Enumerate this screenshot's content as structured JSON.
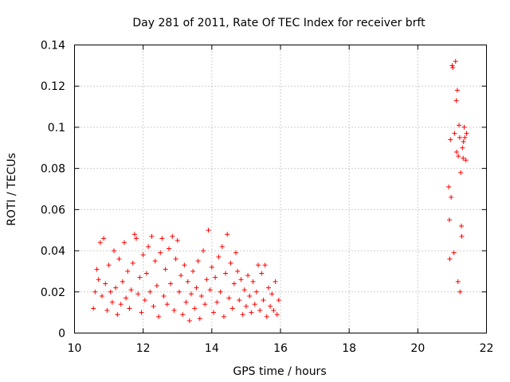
{
  "chart_data": {
    "type": "scatter",
    "title": "Day 281 of 2011, Rate Of TEC Index for receiver brft",
    "xlabel": "GPS time / hours",
    "ylabel": "ROTI / TECUs",
    "xlim": [
      10,
      22
    ],
    "ylim": [
      0,
      0.14
    ],
    "xticks": [
      10,
      12,
      14,
      16,
      18,
      20,
      22
    ],
    "xtick_labels": [
      "10",
      "12",
      "14",
      "16",
      "18",
      "20",
      "22"
    ],
    "yticks": [
      0,
      0.02,
      0.04,
      0.06,
      0.08,
      0.1,
      0.12,
      0.14
    ],
    "ytick_labels": [
      "0",
      "0.02",
      "0.04",
      "0.06",
      "0.08",
      "0.1",
      "0.12",
      "0.14"
    ],
    "grid": true,
    "marker": "+",
    "marker_color": "#ff0000",
    "series": [
      {
        "name": "ROTI",
        "points": [
          [
            10.55,
            0.012
          ],
          [
            10.6,
            0.02
          ],
          [
            10.65,
            0.031
          ],
          [
            10.7,
            0.026
          ],
          [
            10.75,
            0.044
          ],
          [
            10.8,
            0.018
          ],
          [
            10.85,
            0.046
          ],
          [
            10.9,
            0.024
          ],
          [
            10.95,
            0.011
          ],
          [
            11.0,
            0.033
          ],
          [
            11.05,
            0.02
          ],
          [
            11.1,
            0.015
          ],
          [
            11.15,
            0.04
          ],
          [
            11.2,
            0.022
          ],
          [
            11.25,
            0.009
          ],
          [
            11.3,
            0.036
          ],
          [
            11.35,
            0.014
          ],
          [
            11.4,
            0.025
          ],
          [
            11.45,
            0.044
          ],
          [
            11.5,
            0.017
          ],
          [
            11.55,
            0.03
          ],
          [
            11.6,
            0.012
          ],
          [
            11.65,
            0.021
          ],
          [
            11.7,
            0.034
          ],
          [
            11.75,
            0.048
          ],
          [
            11.8,
            0.046
          ],
          [
            11.85,
            0.019
          ],
          [
            11.9,
            0.027
          ],
          [
            11.95,
            0.01
          ],
          [
            12.0,
            0.038
          ],
          [
            12.05,
            0.016
          ],
          [
            12.1,
            0.029
          ],
          [
            12.15,
            0.042
          ],
          [
            12.2,
            0.02
          ],
          [
            12.25,
            0.047
          ],
          [
            12.3,
            0.013
          ],
          [
            12.35,
            0.035
          ],
          [
            12.4,
            0.023
          ],
          [
            12.45,
            0.008
          ],
          [
            12.5,
            0.039
          ],
          [
            12.55,
            0.046
          ],
          [
            12.6,
            0.018
          ],
          [
            12.65,
            0.031
          ],
          [
            12.7,
            0.014
          ],
          [
            12.75,
            0.041
          ],
          [
            12.8,
            0.024
          ],
          [
            12.85,
            0.047
          ],
          [
            12.9,
            0.011
          ],
          [
            12.95,
            0.036
          ],
          [
            13.0,
            0.045
          ],
          [
            13.05,
            0.02
          ],
          [
            13.1,
            0.028
          ],
          [
            13.15,
            0.009
          ],
          [
            13.2,
            0.033
          ],
          [
            13.25,
            0.015
          ],
          [
            13.3,
            0.025
          ],
          [
            13.35,
            0.006
          ],
          [
            13.4,
            0.019
          ],
          [
            13.45,
            0.03
          ],
          [
            13.5,
            0.012
          ],
          [
            13.55,
            0.022
          ],
          [
            13.6,
            0.035
          ],
          [
            13.65,
            0.007
          ],
          [
            13.7,
            0.018
          ],
          [
            13.75,
            0.04
          ],
          [
            13.8,
            0.014
          ],
          [
            13.85,
            0.026
          ],
          [
            13.9,
            0.05
          ],
          [
            13.95,
            0.021
          ],
          [
            14.0,
            0.032
          ],
          [
            14.05,
            0.01
          ],
          [
            14.1,
            0.027
          ],
          [
            14.15,
            0.015
          ],
          [
            14.2,
            0.037
          ],
          [
            14.25,
            0.02
          ],
          [
            14.3,
            0.042
          ],
          [
            14.35,
            0.008
          ],
          [
            14.4,
            0.029
          ],
          [
            14.45,
            0.048
          ],
          [
            14.5,
            0.017
          ],
          [
            14.55,
            0.034
          ],
          [
            14.6,
            0.012
          ],
          [
            14.65,
            0.024
          ],
          [
            14.7,
            0.039
          ],
          [
            14.75,
            0.03
          ],
          [
            14.8,
            0.016
          ],
          [
            14.85,
            0.026
          ],
          [
            14.9,
            0.009
          ],
          [
            14.95,
            0.021
          ],
          [
            15.0,
            0.013
          ],
          [
            15.05,
            0.028
          ],
          [
            15.1,
            0.018
          ],
          [
            15.15,
            0.01
          ],
          [
            15.2,
            0.025
          ],
          [
            15.25,
            0.014
          ],
          [
            15.3,
            0.02
          ],
          [
            15.35,
            0.033
          ],
          [
            15.4,
            0.011
          ],
          [
            15.45,
            0.029
          ],
          [
            15.5,
            0.016
          ],
          [
            15.55,
            0.033
          ],
          [
            15.6,
            0.008
          ],
          [
            15.65,
            0.022
          ],
          [
            15.7,
            0.013
          ],
          [
            15.75,
            0.019
          ],
          [
            15.8,
            0.011
          ],
          [
            15.85,
            0.025
          ],
          [
            15.9,
            0.009
          ],
          [
            15.95,
            0.016
          ],
          [
            20.9,
            0.071
          ],
          [
            20.92,
            0.055
          ],
          [
            20.93,
            0.036
          ],
          [
            20.95,
            0.094
          ],
          [
            20.97,
            0.066
          ],
          [
            21.0,
            0.13
          ],
          [
            21.02,
            0.129
          ],
          [
            21.05,
            0.039
          ],
          [
            21.07,
            0.097
          ],
          [
            21.1,
            0.132
          ],
          [
            21.12,
            0.113
          ],
          [
            21.13,
            0.088
          ],
          [
            21.15,
            0.118
          ],
          [
            21.17,
            0.025
          ],
          [
            21.18,
            0.086
          ],
          [
            21.2,
            0.101
          ],
          [
            21.22,
            0.095
          ],
          [
            21.23,
            0.02
          ],
          [
            21.25,
            0.078
          ],
          [
            21.27,
            0.052
          ],
          [
            21.28,
            0.047
          ],
          [
            21.3,
            0.09
          ],
          [
            21.32,
            0.085
          ],
          [
            21.33,
            0.093
          ],
          [
            21.35,
            0.1
          ],
          [
            21.37,
            0.095
          ],
          [
            21.4,
            0.084
          ],
          [
            21.42,
            0.097
          ]
        ]
      }
    ]
  }
}
